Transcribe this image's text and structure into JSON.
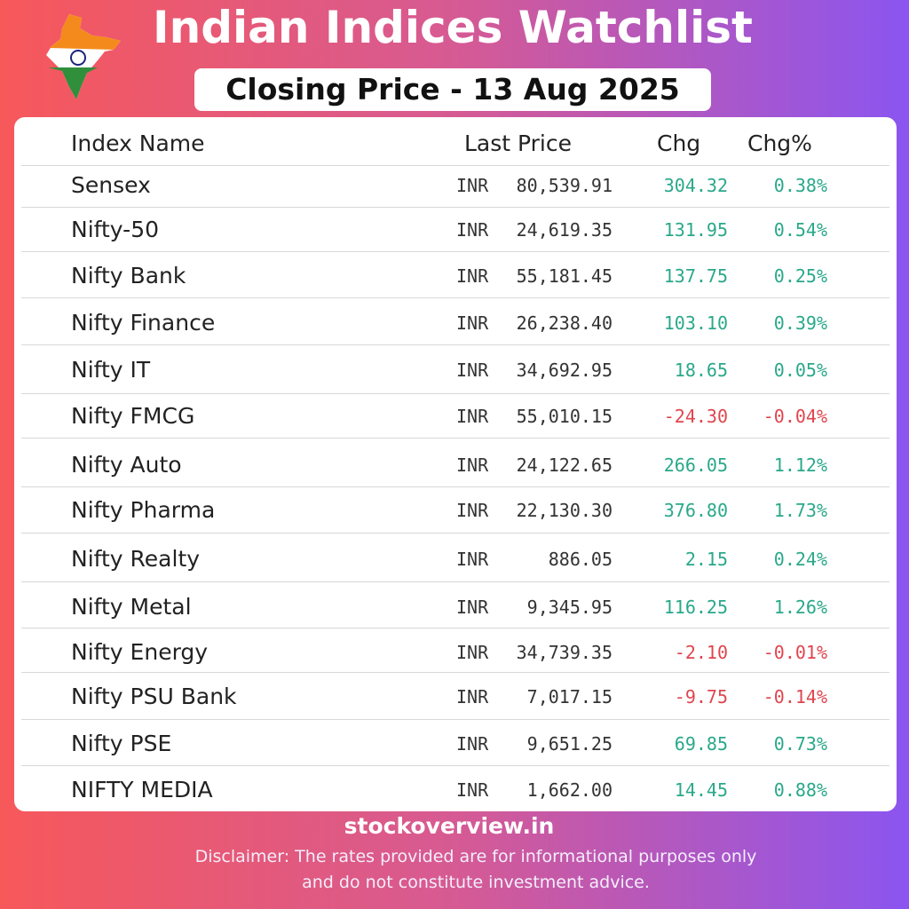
{
  "header": {
    "title": "Indian Indices Watchlist",
    "subtitle": "Closing Price - 13 Aug 2025"
  },
  "table": {
    "headers": [
      "Index Name",
      "Last Price",
      "Chg",
      "Chg%"
    ],
    "rows": [
      {
        "name": "Sensex",
        "currency": "INR",
        "price": "80,539.91",
        "chg": "304.32",
        "chg_pct": "0.38%",
        "color": "#2aa88a"
      },
      {
        "name": "Nifty-50",
        "currency": "INR",
        "price": "24,619.35",
        "chg": "131.95",
        "chg_pct": "0.54%",
        "color": "#2aa88a"
      },
      {
        "name": "Nifty Bank",
        "currency": "INR",
        "price": "55,181.45",
        "chg": "137.75",
        "chg_pct": "0.25%",
        "color": "#2aa88a"
      },
      {
        "name": "Nifty Finance",
        "currency": "INR",
        "price": "26,238.40",
        "chg": "103.10",
        "chg_pct": "0.39%",
        "color": "#2aa88a"
      },
      {
        "name": "Nifty IT",
        "currency": "INR",
        "price": "34,692.95",
        "chg": "18.65",
        "chg_pct": "0.05%",
        "color": "#2aa88a"
      },
      {
        "name": "Nifty FMCG",
        "currency": "INR",
        "price": "55,010.15",
        "chg": "-24.30",
        "chg_pct": "-0.04%",
        "color": "#e0454f"
      },
      {
        "name": "Nifty Auto",
        "currency": "INR",
        "price": "24,122.65",
        "chg": "266.05",
        "chg_pct": "1.12%",
        "color": "#2aa88a"
      },
      {
        "name": "Nifty Pharma",
        "currency": "INR",
        "price": "22,130.30",
        "chg": "376.80",
        "chg_pct": "1.73%",
        "color": "#2aa88a"
      },
      {
        "name": "Nifty Realty",
        "currency": "INR",
        "price": "886.05",
        "chg": "2.15",
        "chg_pct": "0.24%",
        "color": "#2aa88a"
      },
      {
        "name": "Nifty Metal",
        "currency": "INR",
        "price": "9,345.95",
        "chg": "116.25",
        "chg_pct": "1.26%",
        "color": "#2aa88a"
      },
      {
        "name": "Nifty Energy",
        "currency": "INR",
        "price": "34,739.35",
        "chg": "-2.10",
        "chg_pct": "-0.01%",
        "color": "#e0454f"
      },
      {
        "name": "Nifty PSU Bank",
        "currency": "INR",
        "price": "7,017.15",
        "chg": "-9.75",
        "chg_pct": "-0.14%",
        "color": "#e0454f"
      },
      {
        "name": "Nifty PSE",
        "currency": "INR",
        "price": "9,651.25",
        "chg": "69.85",
        "chg_pct": "0.73%",
        "color": "#2aa88a"
      },
      {
        "name": "NIFTY MEDIA",
        "currency": "INR",
        "price": "1,662.00",
        "chg": "14.45",
        "chg_pct": "0.88%",
        "color": "#2aa88a"
      }
    ]
  },
  "footer": {
    "site": "stockoverview.in",
    "disclaimer": [
      "Disclaimer: The rates provided are for informational purposes only",
      "and do not constitute investment advice."
    ]
  }
}
